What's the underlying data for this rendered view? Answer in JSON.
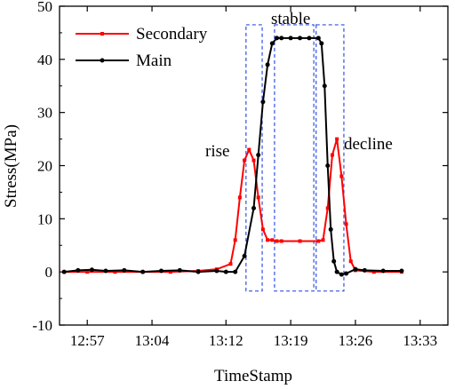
{
  "chart_data": {
    "type": "line",
    "xlabel": "TimeStamp",
    "ylabel": "Stress(MPa)",
    "ylim": [
      -10,
      50
    ],
    "yticks": [
      -10,
      0,
      10,
      20,
      30,
      40,
      50
    ],
    "xlim": [
      "12:54",
      "13:36"
    ],
    "xticks": [
      "12:57",
      "13:04",
      "13:12",
      "13:19",
      "13:26",
      "13:33"
    ],
    "grid": false,
    "legend_position": "top-left",
    "series": [
      {
        "name": "Secondary",
        "color": "#ff0000",
        "marker": "square",
        "x": [
          "12:54:30",
          "12:57:00",
          "13:00:00",
          "13:03:00",
          "13:06:00",
          "13:09:00",
          "13:11:00",
          "13:12:30",
          "13:13:00",
          "13:13:30",
          "13:14:00",
          "13:14:30",
          "13:15:00",
          "13:15:30",
          "13:16:00",
          "13:16:30",
          "13:17:00",
          "13:17:30",
          "13:18:00",
          "13:20:00",
          "13:22:00",
          "13:22:30",
          "13:23:00",
          "13:23:30",
          "13:24:00",
          "13:24:30",
          "13:25:00",
          "13:25:30",
          "13:26:00",
          "13:28:00",
          "13:31:00"
        ],
        "y": [
          0,
          0,
          0,
          0,
          0,
          0.2,
          0.5,
          1.5,
          6,
          14,
          21,
          23,
          21,
          14,
          8,
          6,
          6,
          5.8,
          5.8,
          5.8,
          5.8,
          6,
          12,
          22,
          25,
          18,
          9,
          2,
          0.3,
          0,
          0
        ]
      },
      {
        "name": "Main",
        "color": "#000000",
        "marker": "circle",
        "x": [
          "12:54:30",
          "12:56:00",
          "12:57:30",
          "12:59:00",
          "13:01:00",
          "13:03:00",
          "13:05:00",
          "13:07:00",
          "13:09:00",
          "13:11:00",
          "13:12:00",
          "13:13:00",
          "13:14:00",
          "13:15:00",
          "13:15:30",
          "13:16:00",
          "13:16:30",
          "13:17:00",
          "13:17:30",
          "13:18:00",
          "13:19:00",
          "13:20:00",
          "13:21:00",
          "13:22:00",
          "13:22:20",
          "13:22:40",
          "13:23:00",
          "13:23:20",
          "13:23:40",
          "13:24:00",
          "13:24:30",
          "13:25:00",
          "13:26:00",
          "13:27:00",
          "13:29:00",
          "13:31:00"
        ],
        "y": [
          0,
          0.3,
          0.4,
          0.2,
          0.3,
          0,
          0.2,
          0.3,
          0,
          0.2,
          0,
          0,
          3,
          12,
          22,
          32,
          39,
          43,
          44,
          44,
          44,
          44,
          44,
          44,
          43,
          35,
          20,
          8,
          2,
          0,
          -0.5,
          -0.3,
          0.5,
          0.3,
          0.2,
          0.2
        ]
      }
    ],
    "annotations": {
      "rise": "rise",
      "stable": "stable",
      "decline": "decline"
    },
    "regions": [
      {
        "label": "rise",
        "x": [
          "13:14:10",
          "13:15:55"
        ],
        "y": [
          -3.6,
          46.5
        ]
      },
      {
        "label": "stable",
        "x": [
          "13:17:15",
          "13:21:30"
        ],
        "y": [
          -3.6,
          46.5
        ]
      },
      {
        "label": "decline",
        "x": [
          "13:21:45",
          "13:24:45"
        ],
        "y": [
          -3.6,
          46.5
        ]
      }
    ]
  }
}
